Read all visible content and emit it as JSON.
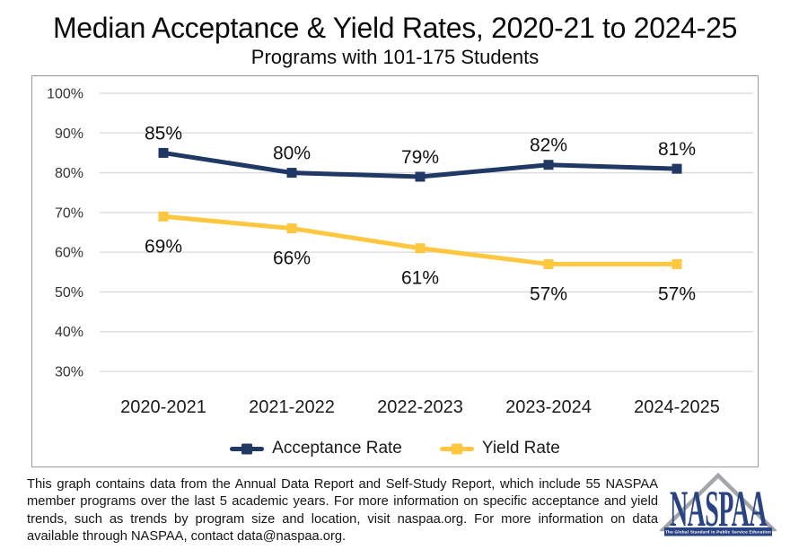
{
  "title": "Median Acceptance & Yield Rates, 2020-21 to 2024-25",
  "subtitle": "Programs with 101-175 Students",
  "chart_data": {
    "type": "line",
    "categories": [
      "2020-2021",
      "2021-2022",
      "2022-2023",
      "2023-2024",
      "2024-2025"
    ],
    "series": [
      {
        "name": "Acceptance Rate",
        "values": [
          85,
          80,
          79,
          82,
          81
        ],
        "color": "#1f3864",
        "marker": "square",
        "label_position": "above"
      },
      {
        "name": "Yield Rate",
        "values": [
          69,
          66,
          61,
          57,
          57
        ],
        "color": "#ffc63f",
        "marker": "square",
        "label_position": "below"
      }
    ],
    "xlabel": "",
    "ylabel": "",
    "ylim": [
      30,
      100
    ],
    "ytick_step": 10,
    "ytick_format": "percent",
    "data_label_format": "percent",
    "grid": "horizontal",
    "grid_color": "#d9d9d9",
    "legend_position": "bottom"
  },
  "footnote": "This graph contains data from the Annual Data Report and Self-Study Report, which include 55 NASPAA member programs over the last 5 academic years. For more information on specific acceptance and yield trends, such as trends by program size and location, visit naspaa.org. For more information on data available through NASPAA, contact data@naspaa.org.",
  "logo": {
    "name": "NASPAA",
    "tagline": "The Global Standard in Public Service Education",
    "navy": "#2a4382",
    "gray": "#a2a6ab"
  }
}
